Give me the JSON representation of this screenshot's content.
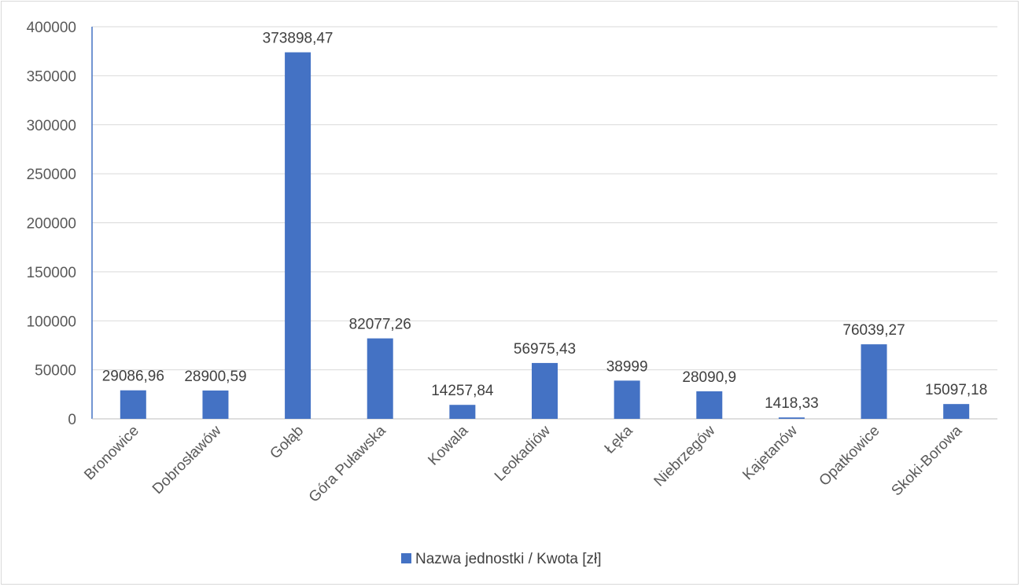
{
  "chart_data": {
    "type": "bar",
    "categories": [
      "Bronowice",
      "Dobrosławów",
      "Gołąb",
      "Góra Puławska",
      "Kowala",
      "Leokadiów",
      "Łęka",
      "Niebrzegów",
      "Kajetanów",
      "Opatkowice",
      "Skoki-Borowa"
    ],
    "series": [
      {
        "name": "Nazwa jednostki / Kwota [zł]",
        "values": [
          29086.96,
          28900.59,
          373898.47,
          82077.26,
          14257.84,
          56975.43,
          38999,
          28090.9,
          1418.33,
          76039.27,
          15097.18
        ],
        "labels": [
          "29086,96",
          "28900,59",
          "373898,47",
          "82077,26",
          "14257,84",
          "56975,43",
          "38999",
          "28090,9",
          "1418,33",
          "76039,27",
          "15097,18"
        ]
      }
    ],
    "y_ticks": [
      "0",
      "50000",
      "100000",
      "150000",
      "200000",
      "250000",
      "300000",
      "350000",
      "400000"
    ],
    "ylim": [
      0,
      400000
    ],
    "grid": true,
    "legend_position": "bottom",
    "colors": {
      "bar": "#4472c4",
      "grid": "#d9d9d9",
      "axis": "#bfbfbf",
      "tick_text": "#595959",
      "label_text": "#404040"
    }
  }
}
